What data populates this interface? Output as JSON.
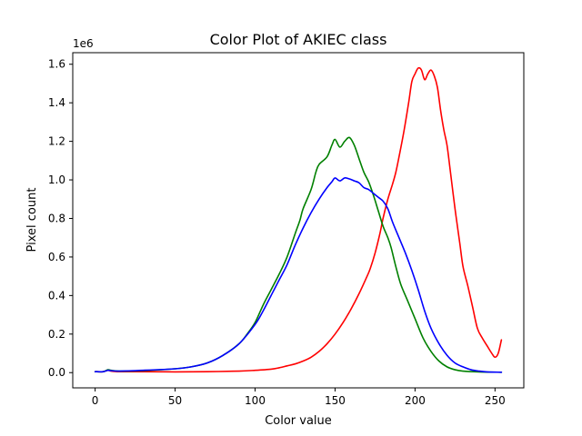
{
  "chart_data": {
    "type": "line",
    "title": "Color Plot of AKIEC class",
    "xlabel": "Color value",
    "ylabel": "Pixel count",
    "offset_label": "1e6",
    "xlim": [
      -14,
      268
    ],
    "ylim": [
      -0.079,
      1.66
    ],
    "xticks": [
      0,
      50,
      100,
      150,
      200,
      250
    ],
    "xtick_labels": [
      "0",
      "50",
      "100",
      "150",
      "200",
      "250"
    ],
    "yticks": [
      0.0,
      0.2,
      0.4,
      0.6,
      0.8,
      1.0,
      1.2,
      1.4,
      1.6
    ],
    "ytick_labels": [
      "0.0",
      "0.2",
      "0.4",
      "0.6",
      "0.8",
      "1.0",
      "1.2",
      "1.4",
      "1.6"
    ],
    "grid": false,
    "series": [
      {
        "color": "#ff0000",
        "points": [
          [
            0,
            0.005
          ],
          [
            5,
            0.005
          ],
          [
            8,
            0.012
          ],
          [
            10,
            0.008
          ],
          [
            15,
            0.005
          ],
          [
            30,
            0.005
          ],
          [
            50,
            0.004
          ],
          [
            70,
            0.005
          ],
          [
            90,
            0.008
          ],
          [
            100,
            0.012
          ],
          [
            110,
            0.018
          ],
          [
            115,
            0.025
          ],
          [
            120,
            0.035
          ],
          [
            125,
            0.045
          ],
          [
            130,
            0.06
          ],
          [
            135,
            0.08
          ],
          [
            140,
            0.11
          ],
          [
            145,
            0.15
          ],
          [
            150,
            0.2
          ],
          [
            155,
            0.26
          ],
          [
            160,
            0.33
          ],
          [
            165,
            0.41
          ],
          [
            170,
            0.5
          ],
          [
            172,
            0.54
          ],
          [
            175,
            0.62
          ],
          [
            178,
            0.72
          ],
          [
            180,
            0.8
          ],
          [
            183,
            0.9
          ],
          [
            186,
            0.98
          ],
          [
            188,
            1.04
          ],
          [
            190,
            1.12
          ],
          [
            193,
            1.25
          ],
          [
            196,
            1.4
          ],
          [
            198,
            1.51
          ],
          [
            200,
            1.55
          ],
          [
            202,
            1.58
          ],
          [
            204,
            1.57
          ],
          [
            206,
            1.52
          ],
          [
            208,
            1.55
          ],
          [
            210,
            1.57
          ],
          [
            212,
            1.54
          ],
          [
            214,
            1.48
          ],
          [
            216,
            1.36
          ],
          [
            218,
            1.26
          ],
          [
            220,
            1.18
          ],
          [
            222,
            1.05
          ],
          [
            225,
            0.85
          ],
          [
            228,
            0.67
          ],
          [
            230,
            0.55
          ],
          [
            233,
            0.45
          ],
          [
            236,
            0.34
          ],
          [
            239,
            0.23
          ],
          [
            242,
            0.18
          ],
          [
            245,
            0.14
          ],
          [
            248,
            0.1
          ],
          [
            250,
            0.08
          ],
          [
            252,
            0.1
          ],
          [
            254,
            0.17
          ]
        ]
      },
      {
        "color": "#008000",
        "points": [
          [
            0,
            0.005
          ],
          [
            5,
            0.005
          ],
          [
            8,
            0.015
          ],
          [
            10,
            0.012
          ],
          [
            15,
            0.008
          ],
          [
            30,
            0.01
          ],
          [
            50,
            0.02
          ],
          [
            60,
            0.03
          ],
          [
            70,
            0.05
          ],
          [
            80,
            0.09
          ],
          [
            90,
            0.15
          ],
          [
            95,
            0.2
          ],
          [
            100,
            0.26
          ],
          [
            105,
            0.35
          ],
          [
            110,
            0.43
          ],
          [
            115,
            0.51
          ],
          [
            120,
            0.6
          ],
          [
            125,
            0.72
          ],
          [
            128,
            0.79
          ],
          [
            130,
            0.85
          ],
          [
            135,
            0.95
          ],
          [
            138,
            1.04
          ],
          [
            140,
            1.08
          ],
          [
            145,
            1.12
          ],
          [
            148,
            1.18
          ],
          [
            150,
            1.21
          ],
          [
            153,
            1.17
          ],
          [
            156,
            1.2
          ],
          [
            159,
            1.22
          ],
          [
            162,
            1.18
          ],
          [
            165,
            1.11
          ],
          [
            168,
            1.04
          ],
          [
            171,
            0.99
          ],
          [
            174,
            0.92
          ],
          [
            177,
            0.84
          ],
          [
            180,
            0.76
          ],
          [
            183,
            0.7
          ],
          [
            185,
            0.65
          ],
          [
            188,
            0.55
          ],
          [
            191,
            0.46
          ],
          [
            195,
            0.38
          ],
          [
            200,
            0.28
          ],
          [
            205,
            0.18
          ],
          [
            210,
            0.11
          ],
          [
            215,
            0.06
          ],
          [
            220,
            0.03
          ],
          [
            225,
            0.015
          ],
          [
            230,
            0.008
          ],
          [
            240,
            0.004
          ],
          [
            254,
            0.002
          ]
        ]
      },
      {
        "color": "#0000ff",
        "points": [
          [
            0,
            0.005
          ],
          [
            5,
            0.005
          ],
          [
            8,
            0.012
          ],
          [
            10,
            0.01
          ],
          [
            15,
            0.008
          ],
          [
            30,
            0.012
          ],
          [
            50,
            0.02
          ],
          [
            60,
            0.03
          ],
          [
            70,
            0.05
          ],
          [
            80,
            0.09
          ],
          [
            90,
            0.15
          ],
          [
            100,
            0.25
          ],
          [
            105,
            0.32
          ],
          [
            110,
            0.4
          ],
          [
            115,
            0.48
          ],
          [
            120,
            0.56
          ],
          [
            125,
            0.66
          ],
          [
            130,
            0.75
          ],
          [
            135,
            0.83
          ],
          [
            140,
            0.9
          ],
          [
            145,
            0.96
          ],
          [
            148,
            0.99
          ],
          [
            150,
            1.01
          ],
          [
            153,
            0.995
          ],
          [
            156,
            1.01
          ],
          [
            159,
            1.005
          ],
          [
            162,
            0.995
          ],
          [
            165,
            0.985
          ],
          [
            168,
            0.96
          ],
          [
            171,
            0.95
          ],
          [
            174,
            0.93
          ],
          [
            177,
            0.91
          ],
          [
            180,
            0.89
          ],
          [
            183,
            0.85
          ],
          [
            186,
            0.78
          ],
          [
            190,
            0.7
          ],
          [
            194,
            0.62
          ],
          [
            198,
            0.53
          ],
          [
            202,
            0.43
          ],
          [
            206,
            0.32
          ],
          [
            210,
            0.23
          ],
          [
            215,
            0.15
          ],
          [
            220,
            0.09
          ],
          [
            225,
            0.05
          ],
          [
            230,
            0.03
          ],
          [
            235,
            0.015
          ],
          [
            240,
            0.008
          ],
          [
            245,
            0.004
          ],
          [
            254,
            0.002
          ]
        ]
      }
    ]
  }
}
